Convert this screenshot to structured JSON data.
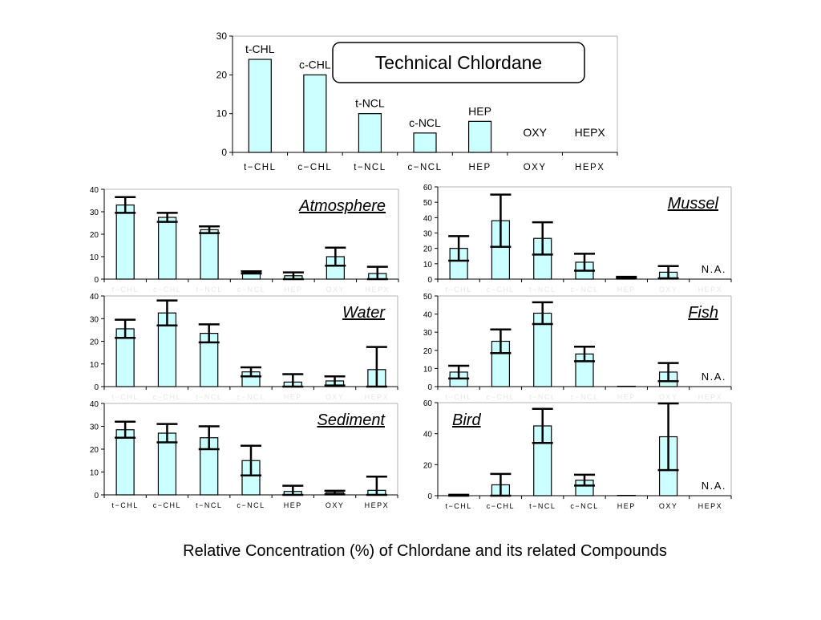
{
  "caption": "Relative Concentration (%) of Chlordane and its related Compounds",
  "colors": {
    "bar_fill": "#ccffff",
    "bar_stroke": "#000000",
    "error_bar": "#000000"
  },
  "chart_data": [
    {
      "id": "technical",
      "type": "bar",
      "title": "Technical Chlordane",
      "categories": [
        "t−CHL",
        "c−CHL",
        "t−NCL",
        "c−NCL",
        "HEP",
        "OXY",
        "HEPX"
      ],
      "bar_labels": [
        "t-CHL",
        "c-CHL",
        "t-NCL",
        "c-NCL",
        "HEP",
        "OXY",
        "HEPX"
      ],
      "values": [
        24,
        20,
        10,
        5,
        8,
        0,
        0
      ],
      "ylim": [
        0,
        30
      ],
      "yticks": [
        0,
        10,
        20,
        30
      ],
      "legend": "none"
    },
    {
      "id": "atmosphere",
      "type": "bar",
      "title": "Atmosphere",
      "categories": [
        "t−CHL",
        "c−CHL",
        "t−NCL",
        "c−NCL",
        "HEP",
        "OXY",
        "HEPX"
      ],
      "values": [
        33,
        27.5,
        22,
        3,
        1.5,
        10,
        2.5
      ],
      "errors": [
        3.5,
        2,
        1.5,
        0.5,
        1.5,
        4,
        3
      ],
      "ylim": [
        0,
        40
      ],
      "yticks": [
        0,
        10,
        20,
        30,
        40
      ]
    },
    {
      "id": "mussel",
      "type": "bar",
      "title": "Mussel",
      "categories": [
        "t−CHL",
        "c−CHL",
        "t−NCL",
        "c−NCL",
        "HEP",
        "OXY",
        "HEPX"
      ],
      "values": [
        20,
        38,
        26.5,
        11,
        1,
        4.5,
        0
      ],
      "errors": [
        8,
        17,
        10.5,
        5.5,
        0.5,
        4,
        0
      ],
      "ylim": [
        0,
        60
      ],
      "yticks": [
        0,
        10,
        20,
        30,
        40,
        50,
        60
      ],
      "note": "N.A."
    },
    {
      "id": "water",
      "type": "bar",
      "title": "Water",
      "categories": [
        "t−CHL",
        "c−CHL",
        "t−NCL",
        "c−NCL",
        "HEP",
        "OXY",
        "HEPX"
      ],
      "values": [
        25.5,
        32.5,
        23.5,
        6.5,
        2,
        2.5,
        7.5
      ],
      "errors": [
        4,
        5.5,
        4,
        2,
        3.5,
        2,
        10
      ],
      "ylim": [
        0,
        40
      ],
      "yticks": [
        0,
        10,
        20,
        30,
        40
      ]
    },
    {
      "id": "fish",
      "type": "bar",
      "title": "Fish",
      "categories": [
        "t−CHL",
        "c−CHL",
        "t−NCL",
        "c−NCL",
        "HEP",
        "OXY",
        "HEPX"
      ],
      "values": [
        8,
        25,
        40.5,
        18,
        0.2,
        8,
        0
      ],
      "errors": [
        3.5,
        6.5,
        6,
        4,
        0,
        5,
        0
      ],
      "ylim": [
        0,
        50
      ],
      "yticks": [
        0,
        10,
        20,
        30,
        40,
        50
      ],
      "note": "N.A."
    },
    {
      "id": "sediment",
      "type": "bar",
      "title": "Sediment",
      "categories": [
        "t−CHL",
        "c−CHL",
        "t−NCL",
        "c−NCL",
        "HEP",
        "OXY",
        "HEPX"
      ],
      "values": [
        28.5,
        27,
        25,
        15,
        1.5,
        1,
        2
      ],
      "errors": [
        3.5,
        4,
        5,
        6.5,
        2.5,
        0.8,
        6
      ],
      "ylim": [
        0,
        40
      ],
      "yticks": [
        0,
        10,
        20,
        30,
        40
      ],
      "show_categories": true
    },
    {
      "id": "bird",
      "type": "bar",
      "title": "Bird",
      "title_position": "top-left",
      "categories": [
        "t−CHL",
        "c−CHL",
        "t−NCL",
        "c−NCL",
        "HEP",
        "OXY",
        "HEPX"
      ],
      "values": [
        0.3,
        7,
        45,
        10,
        0.2,
        38,
        0
      ],
      "errors": [
        0.3,
        7,
        11,
        3.5,
        0,
        21.5,
        0
      ],
      "ylim": [
        0,
        60
      ],
      "yticks": [
        0,
        20,
        40,
        60
      ],
      "note": "N.A.",
      "show_categories": true
    }
  ]
}
